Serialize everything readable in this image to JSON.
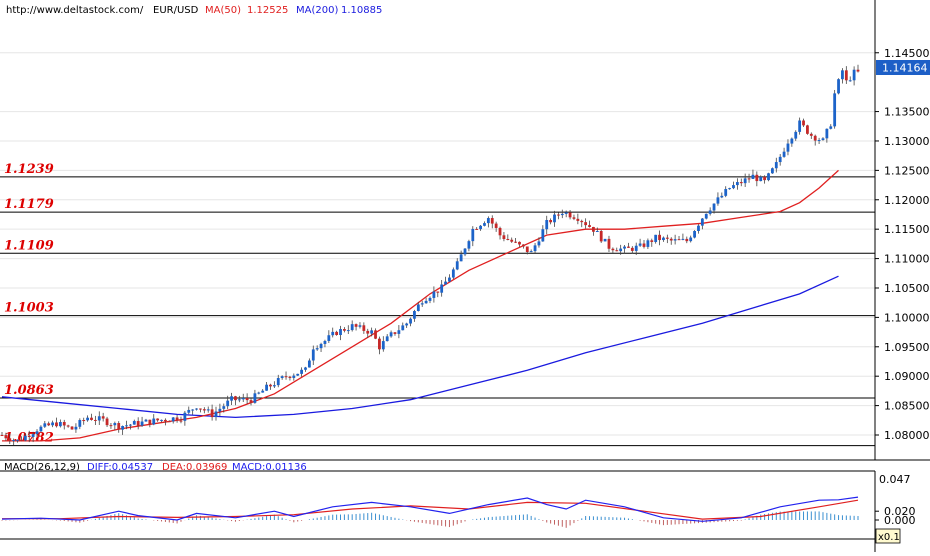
{
  "header": {
    "url": "http://www.deltastock.com/",
    "symbol": "EUR/USD",
    "ma50_label": "MA(50)",
    "ma50_value": "1.12525",
    "ma200_label": "MA(200)",
    "ma200_value": "1.10885"
  },
  "macd_header": {
    "label": "MACD(26,12,9)",
    "diff": "DIFF:0.04537",
    "dea": "DEA:0.03969",
    "macd": "MACD:0.01136"
  },
  "price_axis": {
    "ticks": [
      "1.14500",
      "1.13500",
      "1.13000",
      "1.12500",
      "1.12000",
      "1.11500",
      "1.11000",
      "1.10500",
      "1.10000",
      "1.09500",
      "1.09000",
      "1.08500",
      "1.08000"
    ],
    "current": "1.14164"
  },
  "macd_axis": {
    "ticks": [
      "0.020",
      "0.000"
    ],
    "current": "0.047",
    "scale_badge": "x0.1"
  },
  "levels": [
    "1.1239",
    "1.1179",
    "1.1109",
    "1.1003",
    "1.0863",
    "1.0782"
  ],
  "colors": {
    "bull": "#1c63c9",
    "bear": "#c62828",
    "ma50": "#e02020",
    "ma200": "#1a1adf",
    "level_text": "#dd0000",
    "diff": "#2222ee",
    "dea": "#e02020",
    "hist_pos": "#3a8fd0",
    "hist_neg": "#c06060"
  },
  "chart_data": {
    "type": "candlestick",
    "symbol": "EUR/USD",
    "ylim": [
      1.0775,
      1.1505
    ],
    "close_path": [
      [
        0,
        1.08
      ],
      [
        8,
        1.079
      ],
      [
        18,
        1.081
      ],
      [
        28,
        1.082
      ],
      [
        36,
        1.081
      ],
      [
        44,
        1.083
      ],
      [
        52,
        1.0825
      ],
      [
        60,
        1.0815
      ],
      [
        70,
        1.082
      ],
      [
        80,
        1.0825
      ],
      [
        92,
        1.083
      ],
      [
        100,
        1.085
      ],
      [
        108,
        1.0835
      ],
      [
        118,
        1.086
      ],
      [
        128,
        1.086
      ],
      [
        136,
        1.088
      ],
      [
        146,
        1.09
      ],
      [
        156,
        1.091
      ],
      [
        160,
        1.095
      ],
      [
        166,
        1.096
      ],
      [
        172,
        1.0975
      ],
      [
        180,
        1.0985
      ],
      [
        190,
        1.0975
      ],
      [
        194,
        1.095
      ],
      [
        200,
        1.097
      ],
      [
        208,
        1.099
      ],
      [
        216,
        1.103
      ],
      [
        226,
        1.105
      ],
      [
        234,
        1.109
      ],
      [
        242,
        1.115
      ],
      [
        250,
        1.117
      ],
      [
        256,
        1.114
      ],
      [
        264,
        1.1125
      ],
      [
        272,
        1.111
      ],
      [
        280,
        1.116
      ],
      [
        288,
        1.118
      ],
      [
        296,
        1.117
      ],
      [
        304,
        1.115
      ],
      [
        312,
        1.112
      ],
      [
        320,
        1.1115
      ],
      [
        328,
        1.112
      ],
      [
        336,
        1.1135
      ],
      [
        344,
        1.113
      ],
      [
        352,
        1.113
      ],
      [
        356,
        1.115
      ],
      [
        362,
        1.118
      ],
      [
        368,
        1.12
      ],
      [
        374,
        1.122
      ],
      [
        380,
        1.123
      ],
      [
        386,
        1.124
      ],
      [
        392,
        1.123
      ],
      [
        398,
        1.126
      ],
      [
        404,
        1.13
      ],
      [
        410,
        1.133
      ],
      [
        416,
        1.131
      ],
      [
        422,
        1.13
      ],
      [
        426,
        1.133
      ],
      [
        428,
        1.138
      ],
      [
        432,
        1.142
      ],
      [
        434,
        1.14
      ],
      [
        438,
        1.1416
      ]
    ],
    "ma50_path": [
      [
        0,
        1.079
      ],
      [
        20,
        1.079
      ],
      [
        40,
        1.0795
      ],
      [
        60,
        1.081
      ],
      [
        80,
        1.082
      ],
      [
        100,
        1.083
      ],
      [
        120,
        1.0845
      ],
      [
        140,
        1.087
      ],
      [
        160,
        1.091
      ],
      [
        180,
        1.095
      ],
      [
        200,
        1.099
      ],
      [
        220,
        1.104
      ],
      [
        240,
        1.108
      ],
      [
        260,
        1.111
      ],
      [
        280,
        1.114
      ],
      [
        300,
        1.115
      ],
      [
        320,
        1.115
      ],
      [
        340,
        1.1155
      ],
      [
        360,
        1.116
      ],
      [
        380,
        1.117
      ],
      [
        400,
        1.118
      ],
      [
        410,
        1.1195
      ],
      [
        420,
        1.122
      ],
      [
        430,
        1.125
      ]
    ],
    "ma200_path": [
      [
        0,
        1.0865
      ],
      [
        30,
        1.0855
      ],
      [
        60,
        1.0845
      ],
      [
        90,
        1.0835
      ],
      [
        120,
        1.083
      ],
      [
        150,
        1.0835
      ],
      [
        180,
        1.0845
      ],
      [
        210,
        1.086
      ],
      [
        240,
        1.0885
      ],
      [
        270,
        1.091
      ],
      [
        300,
        1.094
      ],
      [
        330,
        1.0965
      ],
      [
        360,
        1.099
      ],
      [
        390,
        1.102
      ],
      [
        410,
        1.104
      ],
      [
        430,
        1.107
      ]
    ],
    "macd_range": [
      -0.003,
      0.0052
    ],
    "diff_path": [
      [
        0,
        0.0002
      ],
      [
        20,
        0.0004
      ],
      [
        40,
        0.0
      ],
      [
        60,
        0.002
      ],
      [
        70,
        0.001
      ],
      [
        90,
        0.0
      ],
      [
        100,
        0.0015
      ],
      [
        120,
        0.0005
      ],
      [
        140,
        0.002
      ],
      [
        150,
        0.0008
      ],
      [
        170,
        0.003
      ],
      [
        190,
        0.004
      ],
      [
        210,
        0.003
      ],
      [
        230,
        0.0015
      ],
      [
        250,
        0.0035
      ],
      [
        270,
        0.005
      ],
      [
        280,
        0.0035
      ],
      [
        290,
        0.0025
      ],
      [
        300,
        0.0045
      ],
      [
        320,
        0.003
      ],
      [
        340,
        0.0005
      ],
      [
        360,
        -0.0003
      ],
      [
        380,
        0.0005
      ],
      [
        400,
        0.003
      ],
      [
        420,
        0.0045
      ],
      [
        430,
        0.0046
      ],
      [
        440,
        0.0052
      ]
    ],
    "dea_path": [
      [
        0,
        0.0003
      ],
      [
        30,
        0.0003
      ],
      [
        60,
        0.0008
      ],
      [
        90,
        0.0006
      ],
      [
        120,
        0.0008
      ],
      [
        150,
        0.0012
      ],
      [
        180,
        0.0025
      ],
      [
        210,
        0.0032
      ],
      [
        240,
        0.0025
      ],
      [
        270,
        0.004
      ],
      [
        300,
        0.0038
      ],
      [
        330,
        0.002
      ],
      [
        360,
        0.0002
      ],
      [
        390,
        0.0008
      ],
      [
        420,
        0.003
      ],
      [
        440,
        0.0045
      ]
    ]
  }
}
